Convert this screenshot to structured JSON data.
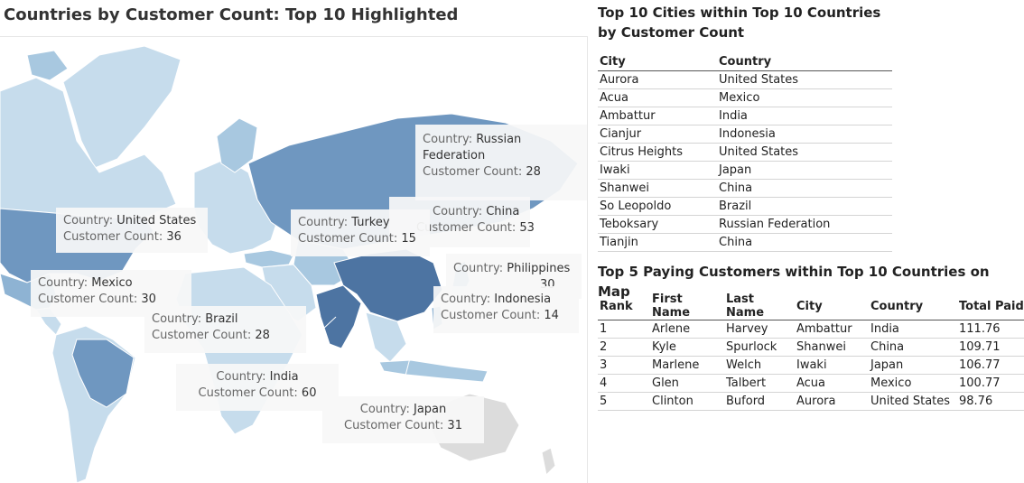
{
  "map": {
    "title": "Countries by Customer Count: Top 10 Highlighted",
    "field_country": "Country:",
    "field_count": "Customer Count:",
    "colors": {
      "light": "#c6dcec",
      "mid": "#a8c8e0",
      "mid2": "#8eb3d3",
      "strong": "#6f97c0",
      "darkest": "#4d74a2",
      "grey": "#dcdcdc",
      "border": "#ffffff"
    },
    "tooltips": [
      {
        "country_l1": "Russian",
        "country_l2": "Federation",
        "count": "28"
      },
      {
        "country_l1": "United States",
        "count": "36"
      },
      {
        "country_l1": "Turkey",
        "count": "15"
      },
      {
        "country_l1": "China",
        "count": "53"
      },
      {
        "country_l1": "Philippines",
        "count": "30"
      },
      {
        "country_l1": "Mexico",
        "count": "30"
      },
      {
        "country_l1": "Indonesia",
        "count": "14"
      },
      {
        "country_l1": "Brazil",
        "count": "28"
      },
      {
        "country_l1": "India",
        "count": "60"
      },
      {
        "country_l1": "Japan",
        "count": "31"
      }
    ]
  },
  "cities": {
    "title_line1": "Top 10 Cities within Top 10 Countries",
    "title_line2": "by Customer Count",
    "headers": [
      "City",
      "Country"
    ],
    "rows": [
      [
        "Aurora",
        "United States"
      ],
      [
        "Acua",
        "Mexico"
      ],
      [
        "Ambattur",
        "India"
      ],
      [
        "Cianjur",
        "Indonesia"
      ],
      [
        "Citrus Heights",
        "United States"
      ],
      [
        "Iwaki",
        "Japan"
      ],
      [
        "Shanwei",
        "China"
      ],
      [
        "So Leopoldo",
        "Brazil"
      ],
      [
        "Teboksary",
        "Russian Federation"
      ],
      [
        "Tianjin",
        "China"
      ]
    ]
  },
  "customers": {
    "title": "Top 5 Paying Customers within Top 10 Countries on Map",
    "headers": [
      "Rank",
      "First Name",
      "Last Name",
      "City",
      "Country",
      "Total Paid"
    ],
    "rows": [
      [
        "1",
        "Arlene",
        "Harvey",
        "Ambattur",
        "India",
        "111.76"
      ],
      [
        "2",
        "Kyle",
        "Spurlock",
        "Shanwei",
        "China",
        "109.71"
      ],
      [
        "3",
        "Marlene",
        "Welch",
        "Iwaki",
        "Japan",
        "106.77"
      ],
      [
        "4",
        "Glen",
        "Talbert",
        "Acua",
        "Mexico",
        "100.77"
      ],
      [
        "5",
        "Clinton",
        "Buford",
        "Aurora",
        "United States",
        "98.76"
      ]
    ]
  }
}
